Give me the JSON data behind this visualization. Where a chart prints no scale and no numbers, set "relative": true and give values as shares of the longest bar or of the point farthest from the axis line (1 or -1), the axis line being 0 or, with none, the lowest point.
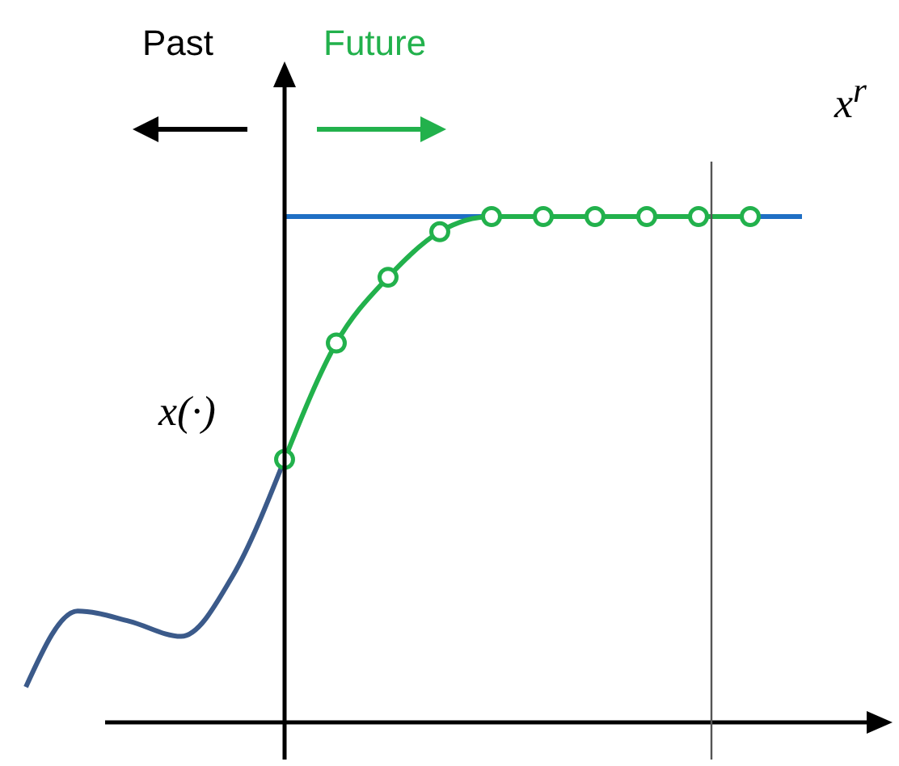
{
  "chart_data": {
    "type": "line",
    "relative": true,
    "categories": [
      null,
      null,
      null,
      null,
      null,
      null,
      null,
      null,
      null,
      null,
      null,
      null,
      null,
      null,
      null,
      null,
      null
    ],
    "annotations": [
      "Past",
      "Future",
      "x(·)"
    ],
    "series": [
      {
        "color": "#3b5a8a",
        "values": [
          0.07,
          0.22,
          0.2,
          0.17,
          0.29,
          0.52,
          null,
          null,
          null,
          null,
          null,
          null,
          null,
          null,
          null,
          null,
          null
        ]
      },
      {
        "name": "x$^{r}$",
        "color": "#1f6fc4",
        "values": [
          null,
          null,
          null,
          null,
          null,
          1,
          1,
          1,
          1,
          1,
          1,
          1,
          1,
          1,
          1,
          1,
          null
        ]
      },
      {
        "color": "#22b14c",
        "marker": "circle",
        "values": [
          null,
          null,
          null,
          null,
          null,
          0.52,
          0.75,
          0.88,
          0.97,
          1,
          1,
          1,
          1,
          1,
          1,
          null,
          null
        ]
      }
    ]
  }
}
